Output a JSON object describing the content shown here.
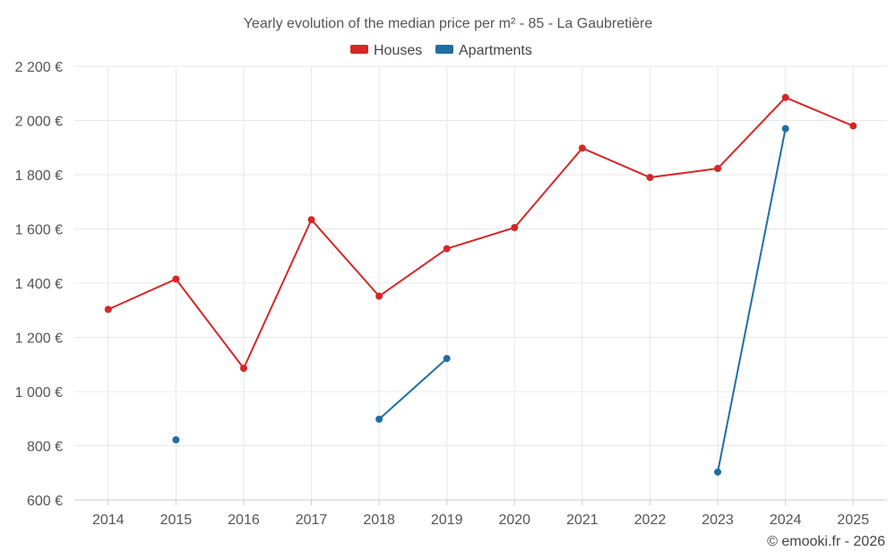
{
  "chart_data": {
    "type": "line",
    "title": "Yearly evolution of the median price per m² - 85 - La Gaubretière",
    "xlabel": "",
    "ylabel": "",
    "categories": [
      "2014",
      "2015",
      "2016",
      "2017",
      "2018",
      "2019",
      "2020",
      "2021",
      "2022",
      "2023",
      "2024",
      "2025"
    ],
    "ylim": [
      600,
      2200
    ],
    "yticks": [
      600,
      800,
      1000,
      1200,
      1400,
      1600,
      1800,
      2000,
      2200
    ],
    "ytick_labels": [
      "600 €",
      "800 €",
      "1 000 €",
      "1 200 €",
      "1 400 €",
      "1 600 €",
      "1 800 €",
      "2 000 €",
      "2 200 €"
    ],
    "grid": true,
    "legend_position": "top-center",
    "series": [
      {
        "name": "Houses",
        "color": "#d62728",
        "values": [
          1303,
          1415,
          1086,
          1634,
          1352,
          1527,
          1605,
          1898,
          1790,
          1823,
          2085,
          1980
        ]
      },
      {
        "name": "Apartments",
        "color": "#1f6fa3",
        "values": [
          null,
          822,
          null,
          null,
          898,
          1122,
          null,
          null,
          null,
          703,
          1970,
          null
        ]
      }
    ],
    "credit": "© emooki.fr - 2026"
  }
}
